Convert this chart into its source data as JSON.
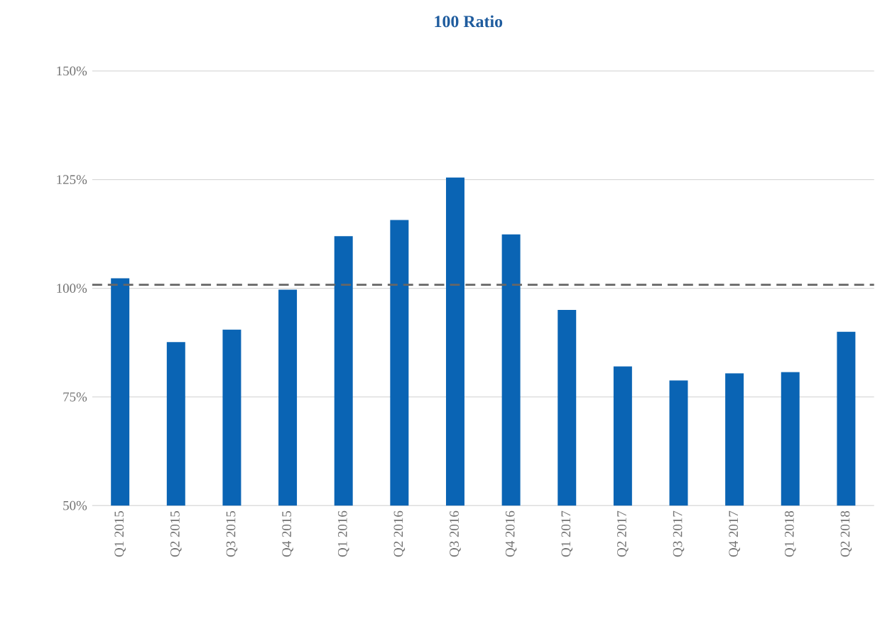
{
  "chart_data": {
    "type": "bar",
    "title": "**100 Ratio**",
    "categories": [
      "Q1 2015",
      "Q2 2015",
      "Q3 2015",
      "Q4 2015",
      "Q1 2016",
      "Q2 2016",
      "Q3 2016",
      "Q4 2016",
      "Q1 2017",
      "Q2 2017",
      "Q3 2017",
      "Q4 2017",
      "Q1 2018",
      "Q2 2018"
    ],
    "values": [
      102.3,
      87.6,
      90.5,
      99.7,
      112,
      115.7,
      125.5,
      112.4,
      95,
      82,
      78.8,
      80.4,
      80.7,
      90
    ],
    "color": "#0a64b4",
    "ylim": [
      50,
      150
    ],
    "yticks": [
      {
        "value": 50,
        "label": "50%"
      },
      {
        "value": 75,
        "label": "75%"
      },
      {
        "value": 100,
        "label": "100%"
      },
      {
        "value": 125,
        "label": "125%"
      },
      {
        "value": 150,
        "label": "150%"
      }
    ],
    "grid": "y",
    "ref_lines": [
      {
        "axis": "y",
        "value": 100.8,
        "color": "#666666",
        "line_style": "dashed"
      }
    ]
  }
}
